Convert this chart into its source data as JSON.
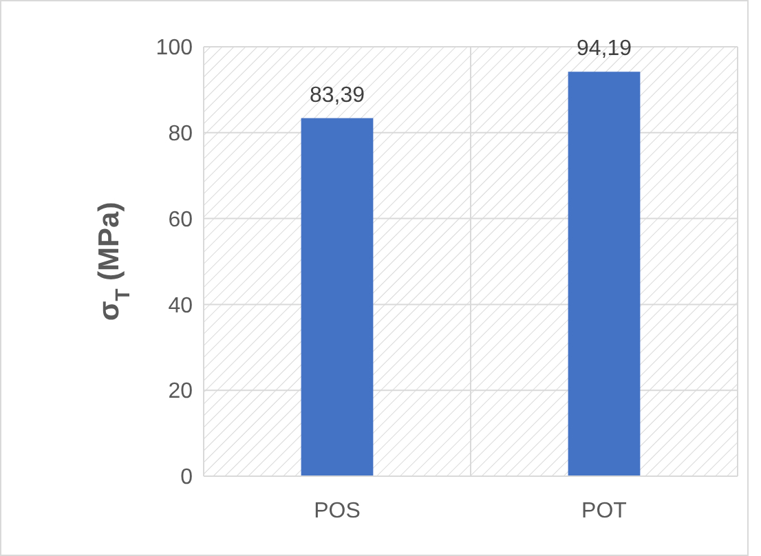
{
  "chart_data": {
    "type": "bar",
    "ylabel": "σ$_{T}$ (MPa)",
    "categories": [
      "POS",
      "POT"
    ],
    "values": [
      83.39,
      94.19
    ],
    "value_labels": [
      "83,39",
      "94,19"
    ],
    "color": "#4472c4",
    "ylim": [
      0,
      100
    ],
    "yticks": [
      0,
      20,
      40,
      60,
      80,
      100
    ],
    "grid": true
  }
}
